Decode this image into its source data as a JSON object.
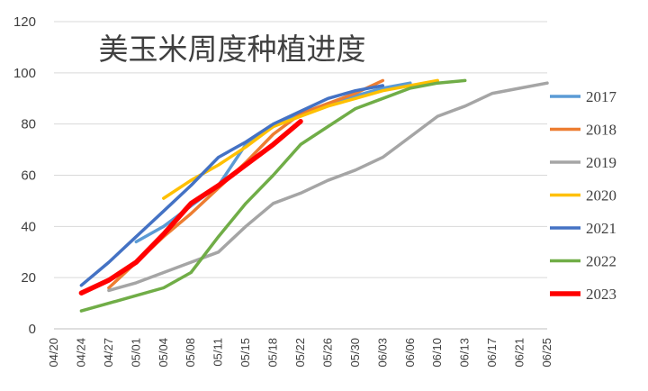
{
  "chart_data": {
    "type": "line",
    "title": "美玉米周度种植进度",
    "xlabel": "",
    "ylabel": "",
    "ylim": [
      0,
      120
    ],
    "yticks": [
      "0",
      "20",
      "40",
      "60",
      "80",
      "100",
      "120"
    ],
    "categories": [
      "04/20",
      "04/24",
      "04/27",
      "05/01",
      "05/04",
      "05/08",
      "05/11",
      "05/15",
      "05/18",
      "05/22",
      "05/26",
      "05/30",
      "06/03",
      "06/06",
      "06/10",
      "06/13",
      "06/17",
      "06/21",
      "06/25"
    ],
    "legend_position": "right",
    "grid": "horizontal",
    "series": [
      {
        "name": "2017",
        "color": "#5B9BD5",
        "points": [
          [
            "05/01",
            34
          ],
          [
            "05/04",
            40
          ],
          [
            "05/08",
            48
          ],
          [
            "05/11",
            56
          ],
          [
            "05/15",
            72
          ],
          [
            "05/18",
            79
          ],
          [
            "05/22",
            84
          ],
          [
            "05/26",
            88
          ],
          [
            "05/30",
            91
          ],
          [
            "06/03",
            94
          ],
          [
            "06/06",
            96
          ]
        ]
      },
      {
        "name": "2018",
        "color": "#ED7D31",
        "points": [
          [
            "04/27",
            16
          ],
          [
            "05/01",
            26
          ],
          [
            "05/04",
            36
          ],
          [
            "05/08",
            45
          ],
          [
            "05/11",
            55
          ],
          [
            "05/15",
            65
          ],
          [
            "05/18",
            76
          ],
          [
            "05/22",
            84
          ],
          [
            "05/26",
            88
          ],
          [
            "05/30",
            92
          ],
          [
            "06/03",
            97
          ]
        ]
      },
      {
        "name": "2019",
        "color": "#A5A5A5",
        "points": [
          [
            "04/27",
            15
          ],
          [
            "05/01",
            18
          ],
          [
            "05/04",
            22
          ],
          [
            "05/08",
            26
          ],
          [
            "05/11",
            30
          ],
          [
            "05/15",
            40
          ],
          [
            "05/18",
            49
          ],
          [
            "05/22",
            53
          ],
          [
            "05/26",
            58
          ],
          [
            "05/30",
            62
          ],
          [
            "06/03",
            67
          ],
          [
            "06/06",
            75
          ],
          [
            "06/10",
            83
          ],
          [
            "06/13",
            87
          ],
          [
            "06/17",
            92
          ],
          [
            "06/21",
            94
          ],
          [
            "06/25",
            96
          ]
        ]
      },
      {
        "name": "2020",
        "color": "#FFC000",
        "points": [
          [
            "05/04",
            51
          ],
          [
            "05/08",
            58
          ],
          [
            "05/11",
            64
          ],
          [
            "05/15",
            71
          ],
          [
            "05/18",
            79
          ],
          [
            "05/22",
            83
          ],
          [
            "05/26",
            87
          ],
          [
            "05/30",
            90
          ],
          [
            "06/03",
            93
          ],
          [
            "06/06",
            95
          ],
          [
            "06/10",
            97
          ]
        ]
      },
      {
        "name": "2021",
        "color": "#4472C4",
        "points": [
          [
            "04/24",
            17
          ],
          [
            "04/27",
            26
          ],
          [
            "05/01",
            36
          ],
          [
            "05/04",
            46
          ],
          [
            "05/08",
            56
          ],
          [
            "05/11",
            67
          ],
          [
            "05/15",
            73
          ],
          [
            "05/18",
            80
          ],
          [
            "05/22",
            85
          ],
          [
            "05/26",
            90
          ],
          [
            "05/30",
            93
          ],
          [
            "06/03",
            95
          ]
        ]
      },
      {
        "name": "2022",
        "color": "#70AD47",
        "points": [
          [
            "04/24",
            7
          ],
          [
            "04/27",
            10
          ],
          [
            "05/01",
            13
          ],
          [
            "05/04",
            16
          ],
          [
            "05/08",
            22
          ],
          [
            "05/11",
            36
          ],
          [
            "05/15",
            49
          ],
          [
            "05/18",
            60
          ],
          [
            "05/22",
            72
          ],
          [
            "05/26",
            79
          ],
          [
            "05/30",
            86
          ],
          [
            "06/03",
            90
          ],
          [
            "06/06",
            94
          ],
          [
            "06/10",
            96
          ],
          [
            "06/13",
            97
          ]
        ]
      },
      {
        "name": "2023",
        "color": "#FF0000",
        "points": [
          [
            "04/24",
            14
          ],
          [
            "04/27",
            19
          ],
          [
            "05/01",
            26
          ],
          [
            "05/04",
            37
          ],
          [
            "05/08",
            49
          ],
          [
            "05/11",
            56
          ],
          [
            "05/15",
            64
          ],
          [
            "05/18",
            72
          ],
          [
            "05/22",
            81
          ]
        ]
      }
    ]
  }
}
